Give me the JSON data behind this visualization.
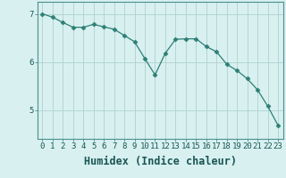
{
  "x": [
    0,
    1,
    2,
    3,
    4,
    5,
    6,
    7,
    8,
    9,
    10,
    11,
    12,
    13,
    14,
    15,
    16,
    17,
    18,
    19,
    20,
    21,
    22,
    23
  ],
  "y": [
    7.0,
    6.93,
    6.82,
    6.72,
    6.72,
    6.78,
    6.73,
    6.68,
    6.55,
    6.42,
    6.07,
    5.73,
    6.18,
    6.47,
    6.48,
    6.48,
    6.32,
    6.21,
    5.95,
    5.82,
    5.65,
    5.42,
    5.08,
    4.68
  ],
  "line_color": "#2d7f75",
  "marker": "D",
  "marker_size": 2.5,
  "bg_color": "#d8f0f0",
  "grid_color": "#b0d0d0",
  "xlabel": "Humidex (Indice chaleur)",
  "ylim": [
    4.4,
    7.25
  ],
  "xlim": [
    -0.5,
    23.5
  ],
  "yticks": [
    5,
    6,
    7
  ],
  "xticks": [
    0,
    1,
    2,
    3,
    4,
    5,
    6,
    7,
    8,
    9,
    10,
    11,
    12,
    13,
    14,
    15,
    16,
    17,
    18,
    19,
    20,
    21,
    22,
    23
  ],
  "tick_labelsize": 6.5,
  "xlabel_fontsize": 8.5
}
